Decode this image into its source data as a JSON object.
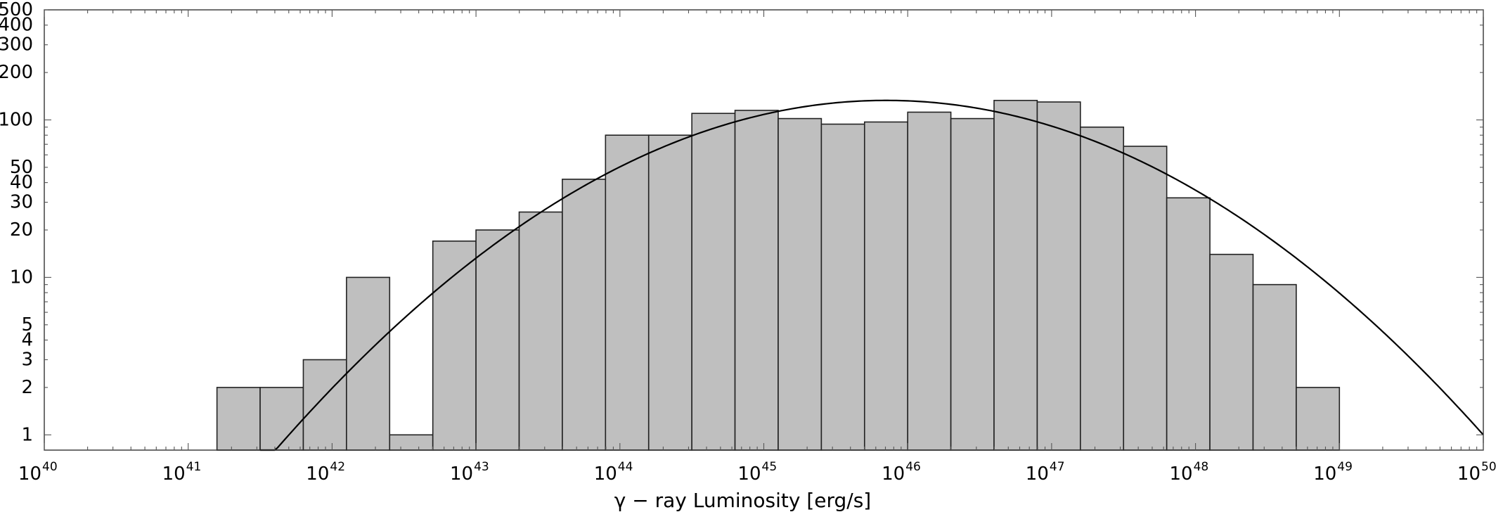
{
  "chart_data": {
    "type": "bar",
    "xlabel": "γ − ray Luminosity [erg/s]",
    "ylabel": "",
    "x_scale": "log",
    "y_scale": "log",
    "xlim": [
      1e+40,
      1e+50
    ],
    "ylim": [
      0.8,
      500
    ],
    "x_ticks": [
      {
        "base": "10",
        "exp": "40",
        "value": 40
      },
      {
        "base": "10",
        "exp": "41",
        "value": 41
      },
      {
        "base": "10",
        "exp": "42",
        "value": 42
      },
      {
        "base": "10",
        "exp": "43",
        "value": 43
      },
      {
        "base": "10",
        "exp": "44",
        "value": 44
      },
      {
        "base": "10",
        "exp": "45",
        "value": 45
      },
      {
        "base": "10",
        "exp": "46",
        "value": 46
      },
      {
        "base": "10",
        "exp": "47",
        "value": 47
      },
      {
        "base": "10",
        "exp": "48",
        "value": 48
      },
      {
        "base": "10",
        "exp": "49",
        "value": 49
      },
      {
        "base": "10",
        "exp": "50",
        "value": 50
      }
    ],
    "y_ticks": [
      {
        "label": "1",
        "value": 1
      },
      {
        "label": "2",
        "value": 2
      },
      {
        "label": "3",
        "value": 3
      },
      {
        "label": "4",
        "value": 4
      },
      {
        "label": "5",
        "value": 5
      },
      {
        "label": "10",
        "value": 10
      },
      {
        "label": "20",
        "value": 20
      },
      {
        "label": "30",
        "value": 30
      },
      {
        "label": "40",
        "value": 40
      },
      {
        "label": "50",
        "value": 50
      },
      {
        "label": "100",
        "value": 100
      },
      {
        "label": "200",
        "value": 200
      },
      {
        "label": "300",
        "value": 300
      },
      {
        "label": "400",
        "value": 400
      },
      {
        "label": "500",
        "value": 500
      }
    ],
    "bins": {
      "log10_edges": [
        41.2,
        41.5,
        41.8,
        42.1,
        42.4,
        42.7,
        43.0,
        43.3,
        43.6,
        43.9,
        44.2,
        44.5,
        44.8,
        45.1,
        45.4,
        45.7,
        46.0,
        46.3,
        46.6,
        46.9,
        47.2,
        47.5,
        47.8,
        48.1,
        48.4,
        48.7,
        49.0
      ],
      "counts": [
        2,
        2,
        3,
        10,
        1,
        17,
        20,
        26,
        42,
        80,
        80,
        110,
        115,
        102,
        94,
        97,
        112,
        102,
        133,
        130,
        90,
        68,
        32,
        14,
        9,
        2
      ]
    },
    "fit_curve": {
      "shape": "parabola in log-log space",
      "peak_log10_x": 45.85,
      "peak_y": 133,
      "start_log10_x": 41.5,
      "end_log10_x": 50.0,
      "end_y": 1
    }
  }
}
